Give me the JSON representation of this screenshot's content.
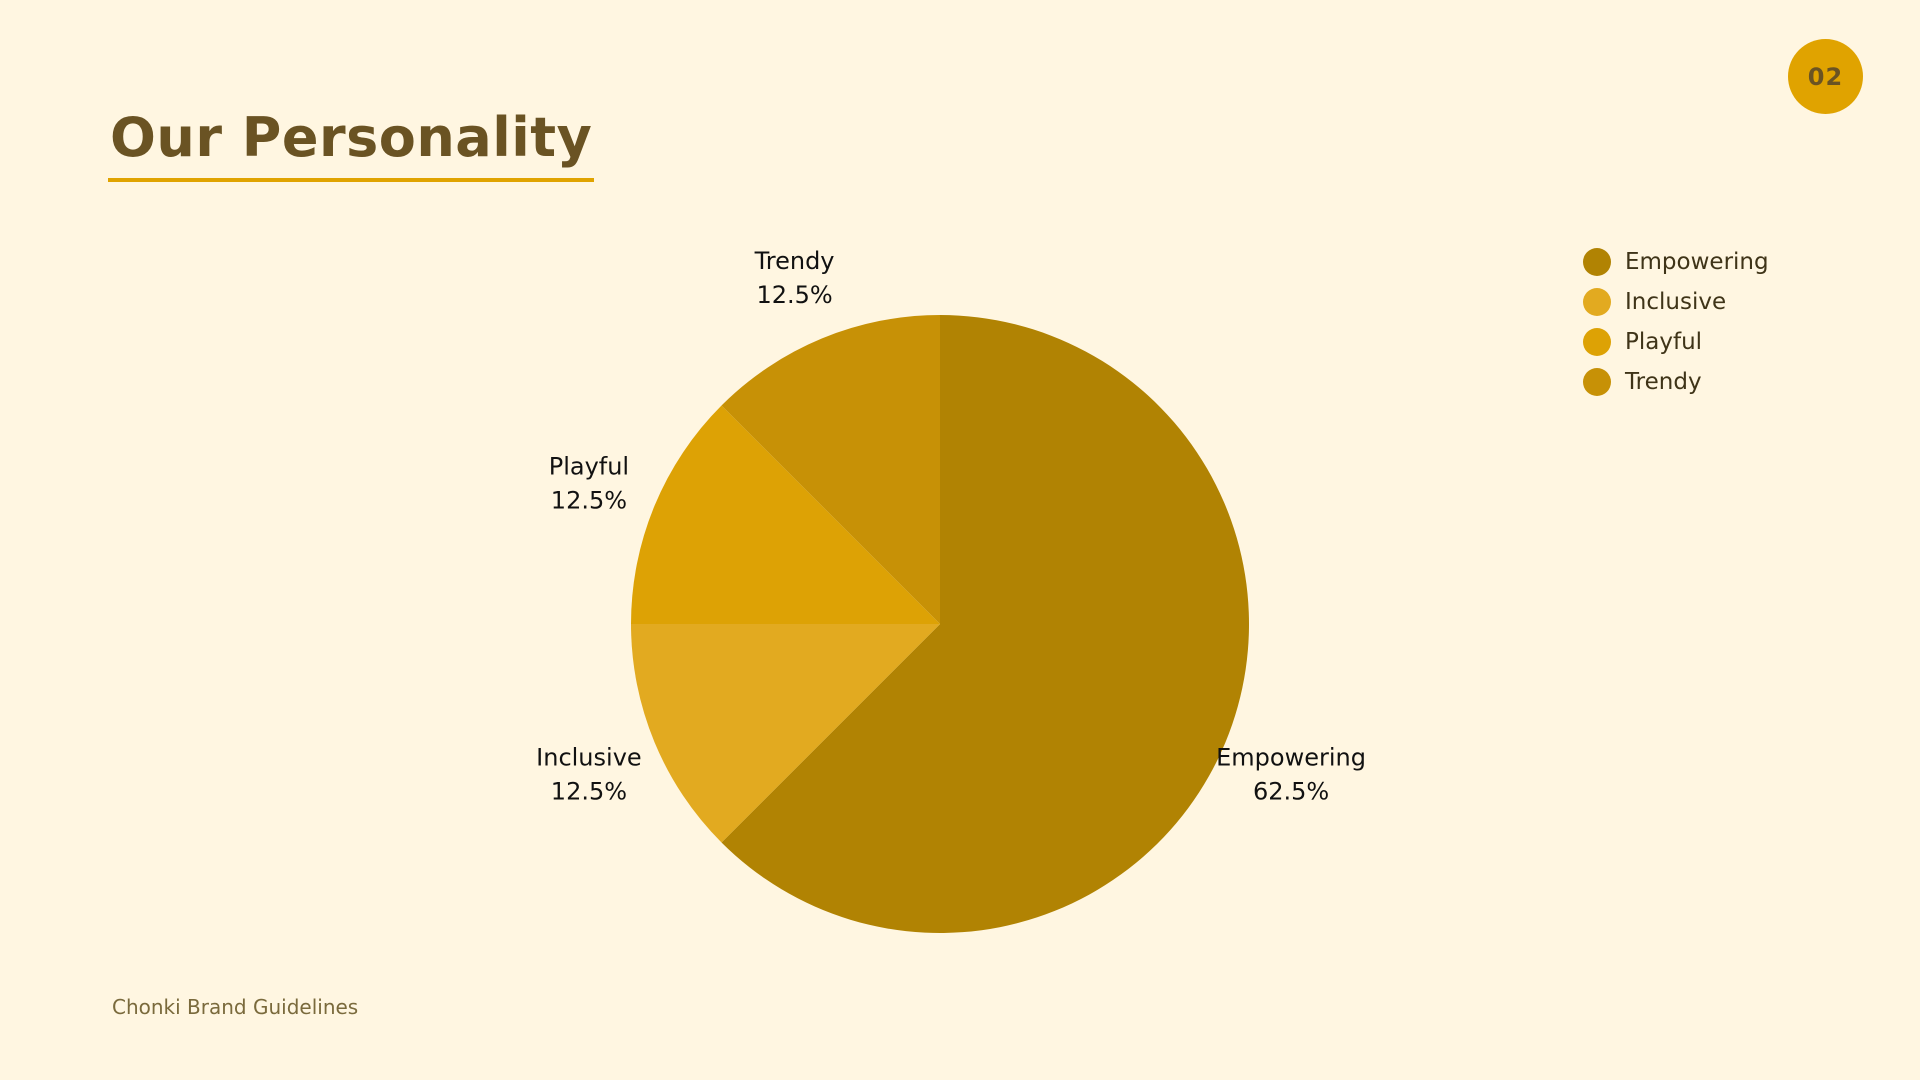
{
  "page": {
    "title": "Our Personality",
    "page_number": "02",
    "footer": "Chonki Brand Guidelines"
  },
  "colors": {
    "background": "#FFF6E1",
    "accent": "#E0A300",
    "title": "#6A5323"
  },
  "chart_data": {
    "type": "pie",
    "title": "",
    "legend_position": "top-right",
    "slices": [
      {
        "label": "Empowering",
        "value": 62.5,
        "percent_label": "62.5%",
        "color": "#B18303"
      },
      {
        "label": "Inclusive",
        "value": 12.5,
        "percent_label": "12.5%",
        "color": "#E2AA20"
      },
      {
        "label": "Playful",
        "value": 12.5,
        "percent_label": "12.5%",
        "color": "#DDA205"
      },
      {
        "label": "Trendy",
        "value": 12.5,
        "percent_label": "12.5%",
        "color": "#C79106"
      }
    ]
  }
}
